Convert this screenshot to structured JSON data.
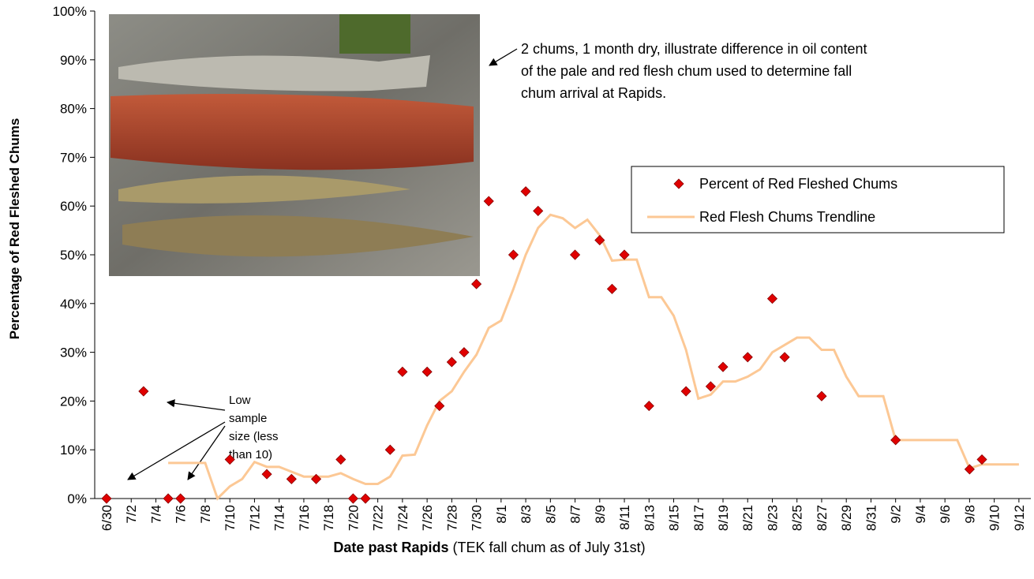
{
  "chart_data": {
    "type": "scatter",
    "x_label_bold": "Date past Rapids",
    "x_label_rest": "(TEK fall chum as of July 31st)",
    "y_label": "Percentage of Red Fleshed Chums",
    "annotations": [
      "2 chums, 1 month dry, illustrate difference in oil content",
      "of the pale and red flesh chum used to determine fall",
      "chum arrival at Rapids."
    ],
    "note_lines": [
      "Low",
      "sample",
      "size (less",
      "than 10)"
    ],
    "legend": "top-right",
    "categories": [
      "6/30",
      null,
      "7/2",
      null,
      "7/4",
      null,
      "7/6",
      null,
      "7/8",
      null,
      "7/10",
      null,
      "7/12",
      null,
      "7/14",
      null,
      "7/16",
      null,
      "7/18",
      null,
      "7/20",
      null,
      "7/22",
      null,
      "7/24",
      null,
      "7/26",
      null,
      "7/28",
      null,
      "7/30",
      null,
      "8/1",
      null,
      "8/3",
      null,
      "8/5",
      null,
      "8/7",
      null,
      "8/9",
      null,
      "8/11",
      null,
      "8/13",
      null,
      "8/15",
      null,
      "8/17",
      null,
      "8/19",
      null,
      "8/21",
      null,
      "8/23",
      null,
      "8/25",
      null,
      "8/27",
      null,
      "8/29",
      null,
      "8/31",
      null,
      "9/2",
      null,
      "9/4",
      null,
      "9/6",
      null,
      "9/8",
      null,
      "9/10",
      null,
      "9/12"
    ],
    "series": [
      {
        "name": "Percent of Red Fleshed Chums",
        "type": "scatter",
        "color": "#e00000",
        "values": [
          0,
          null,
          null,
          22,
          null,
          0,
          0,
          null,
          null,
          null,
          8,
          null,
          null,
          5,
          null,
          4,
          null,
          4,
          null,
          8,
          0,
          0,
          null,
          10,
          26,
          null,
          26,
          19,
          28,
          30,
          44,
          61,
          null,
          50,
          63,
          59,
          null,
          null,
          50,
          null,
          53,
          43,
          50,
          null,
          19,
          null,
          null,
          22,
          null,
          23,
          27,
          null,
          29,
          null,
          41,
          29,
          null,
          null,
          21,
          null,
          null,
          null,
          null,
          null,
          12,
          null,
          null,
          null,
          null,
          null,
          6,
          8,
          null,
          null,
          null
        ]
      },
      {
        "name": "Red Flesh Chums Trendline",
        "type": "line",
        "color": "#fcc895",
        "values": [
          null,
          null,
          null,
          null,
          null,
          7.3,
          7.3,
          7.3,
          7.3,
          0,
          2.5,
          4,
          7.5,
          6.5,
          6.5,
          5.5,
          4.5,
          4.5,
          4.5,
          5.2,
          4,
          3,
          3,
          4.5,
          8.8,
          9,
          15,
          20,
          22,
          26,
          29.5,
          35,
          36.5,
          43,
          50,
          55.5,
          58.2,
          57.5,
          55.5,
          57.2,
          54,
          48.8,
          49,
          49,
          41.3,
          41.3,
          37.5,
          30.5,
          20.5,
          21.3,
          24,
          24,
          25,
          26.5,
          30,
          31.5,
          33,
          33,
          30.5,
          30.5,
          25,
          21,
          21,
          21,
          12,
          12,
          12,
          12,
          12,
          12,
          6.2,
          7,
          7,
          7,
          7
        ]
      }
    ],
    "ylim": [
      0,
      100
    ],
    "yticks": [
      {
        "value": 0,
        "label": "0%"
      },
      {
        "value": 10,
        "label": "10%"
      },
      {
        "value": 20,
        "label": "20%"
      },
      {
        "value": 30,
        "label": "30%"
      },
      {
        "value": 40,
        "label": "40%"
      },
      {
        "value": 50,
        "label": "50%"
      },
      {
        "value": 60,
        "label": "60%"
      },
      {
        "value": 70,
        "label": "70%"
      },
      {
        "value": 80,
        "label": "80%"
      },
      {
        "value": 90,
        "label": "90%"
      },
      {
        "value": 100,
        "label": "100%"
      }
    ]
  }
}
